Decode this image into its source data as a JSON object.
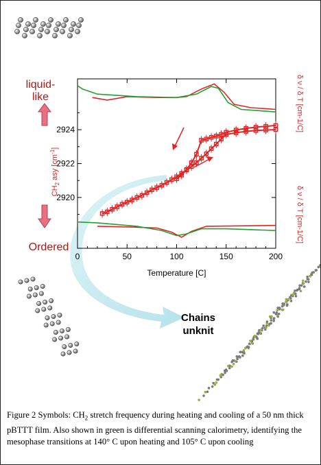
{
  "colors": {
    "data": "#e52222",
    "dsc_green": "#22a032",
    "arrow_pink": "#e87080",
    "arrow_cyan": "#bfe9f0",
    "axis": "#000000"
  },
  "labels": {
    "liquid_like_1": "liquid-",
    "liquid_like_2": "like",
    "ordered": "Ordered",
    "chains_1": "Chains",
    "chains_2": "unknit"
  },
  "caption": {
    "figure_label": "Figure 2",
    "text_1": " Symbols: CH",
    "sub": "2",
    "text_2": " stretch frequency during  heating and cooling of a 50 nm thick pBTTT film. Also shown in green is differential scanning calorimetry, identifying the mesophase transitions at 140° C upon heating and 105° C upon cooling"
  },
  "chart_data": {
    "type": "scatter",
    "xlabel": "Temperature [C]",
    "ylabel_main": "CH",
    "ylabel_sub": "2",
    "ylabel_rest": " asy [cm",
    "ylabel_sup": "-1",
    "ylabel_end": "]",
    "right_label_top": "δ ν / δ T [cm-1/C]",
    "right_label_bottom": "δ ν / δ T [cm-1/C]",
    "xlim": [
      0,
      200
    ],
    "ylim": [
      2917,
      2927
    ],
    "x_ticks": [
      0,
      50,
      100,
      150,
      200
    ],
    "y_ticks": [
      2920,
      2922,
      2924
    ],
    "series": [
      {
        "role": "frequency-heating",
        "points": [
          [
            25,
            2919.05
          ],
          [
            30,
            2919.15
          ],
          [
            35,
            2919.3
          ],
          [
            40,
            2919.45
          ],
          [
            45,
            2919.6
          ],
          [
            50,
            2919.72
          ],
          [
            55,
            2919.85
          ],
          [
            60,
            2920.0
          ],
          [
            65,
            2920.12
          ],
          [
            70,
            2920.28
          ],
          [
            75,
            2920.45
          ],
          [
            80,
            2920.58
          ],
          [
            85,
            2920.72
          ],
          [
            90,
            2920.88
          ],
          [
            95,
            2921.05
          ],
          [
            100,
            2921.22
          ],
          [
            105,
            2921.42
          ],
          [
            110,
            2921.62
          ],
          [
            115,
            2921.82
          ],
          [
            120,
            2922.05
          ],
          [
            125,
            2922.32
          ],
          [
            130,
            2922.58
          ],
          [
            135,
            2922.88
          ],
          [
            140,
            2923.15
          ],
          [
            145,
            2923.45
          ],
          [
            150,
            2923.72
          ],
          [
            160,
            2923.82
          ],
          [
            170,
            2923.9
          ],
          [
            180,
            2923.95
          ],
          [
            190,
            2923.98
          ],
          [
            200,
            2924.0
          ]
        ]
      },
      {
        "role": "frequency-cooling",
        "points": [
          [
            200,
            2924.25
          ],
          [
            190,
            2924.2
          ],
          [
            180,
            2924.15
          ],
          [
            170,
            2924.08
          ],
          [
            160,
            2923.98
          ],
          [
            150,
            2923.85
          ],
          [
            145,
            2923.72
          ],
          [
            140,
            2923.62
          ],
          [
            135,
            2923.55
          ],
          [
            130,
            2923.45
          ],
          [
            125,
            2923.38
          ],
          [
            120,
            2922.55
          ],
          [
            115,
            2922.05
          ],
          [
            110,
            2921.65
          ],
          [
            105,
            2921.32
          ],
          [
            100,
            2921.1
          ]
        ]
      },
      {
        "role": "dsc-heating-red-top",
        "points": [
          [
            15,
            2925.9
          ],
          [
            30,
            2925.75
          ],
          [
            50,
            2925.95
          ],
          [
            80,
            2925.9
          ],
          [
            100,
            2925.9
          ],
          [
            110,
            2925.95
          ],
          [
            125,
            2926.4
          ],
          [
            138,
            2926.7
          ],
          [
            148,
            2926.2
          ],
          [
            158,
            2925.5
          ],
          [
            175,
            2925.3
          ],
          [
            200,
            2925.2
          ]
        ]
      },
      {
        "role": "dsc-heating-green-top",
        "points": [
          [
            0,
            2926.6
          ],
          [
            5,
            2926.4
          ],
          [
            20,
            2926.1
          ],
          [
            60,
            2925.95
          ],
          [
            100,
            2925.9
          ],
          [
            120,
            2926.1
          ],
          [
            135,
            2926.55
          ],
          [
            142,
            2926.45
          ],
          [
            152,
            2925.6
          ],
          [
            165,
            2925.2
          ],
          [
            200,
            2925.05
          ]
        ]
      },
      {
        "role": "dsc-cooling-red-bottom",
        "points": [
          [
            20,
            2918.3
          ],
          [
            55,
            2918.25
          ],
          [
            80,
            2918.2
          ],
          [
            95,
            2917.95
          ],
          [
            105,
            2917.65
          ],
          [
            115,
            2918.0
          ],
          [
            130,
            2918.3
          ],
          [
            200,
            2918.35
          ]
        ]
      },
      {
        "role": "dsc-cooling-green-bottom",
        "points": [
          [
            0,
            2918.55
          ],
          [
            20,
            2918.5
          ],
          [
            60,
            2918.3
          ],
          [
            85,
            2918.05
          ],
          [
            100,
            2917.75
          ],
          [
            110,
            2917.85
          ],
          [
            125,
            2918.15
          ],
          [
            150,
            2918.15
          ],
          [
            200,
            2918.05
          ]
        ]
      }
    ]
  }
}
